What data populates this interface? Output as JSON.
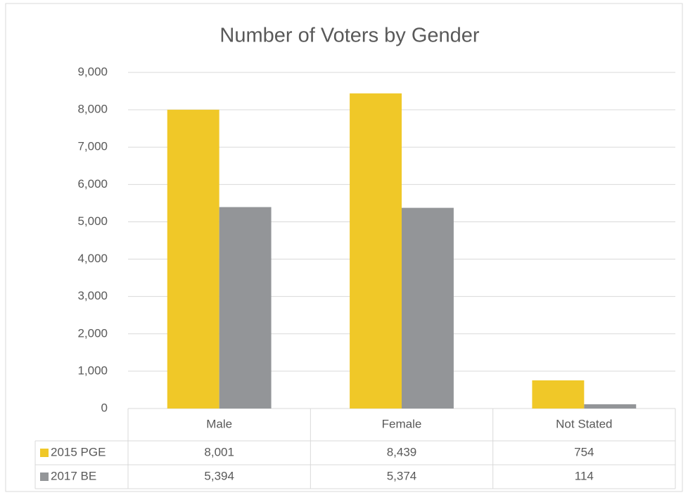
{
  "chart_data": {
    "type": "bar",
    "title": "Number of Voters by Gender",
    "categories": [
      "Male",
      "Female",
      "Not Stated"
    ],
    "series": [
      {
        "name": "2015 PGE",
        "color": "#f0c828",
        "values": [
          8001,
          8439,
          754
        ],
        "value_labels": [
          "8,001",
          "8,439",
          "754"
        ]
      },
      {
        "name": "2017 BE",
        "color": "#939598",
        "values": [
          5394,
          5374,
          114
        ],
        "value_labels": [
          "5,394",
          "5,374",
          "114"
        ]
      }
    ],
    "ylim": [
      0,
      9000
    ],
    "yticks": [
      0,
      {
        "value": 1000,
        "label": "1,000"
      },
      {
        "value": 2000,
        "label": "2,000"
      },
      {
        "value": 3000,
        "label": "3,000"
      },
      {
        "value": 4000,
        "label": "4,000"
      },
      {
        "value": 5000,
        "label": "5,000"
      },
      {
        "value": 6000,
        "label": "6,000"
      },
      {
        "value": 7000,
        "label": "7,000"
      },
      {
        "value": 8000,
        "label": "8,000"
      },
      {
        "value": 9000,
        "label": "9,000"
      }
    ],
    "grid": true
  }
}
